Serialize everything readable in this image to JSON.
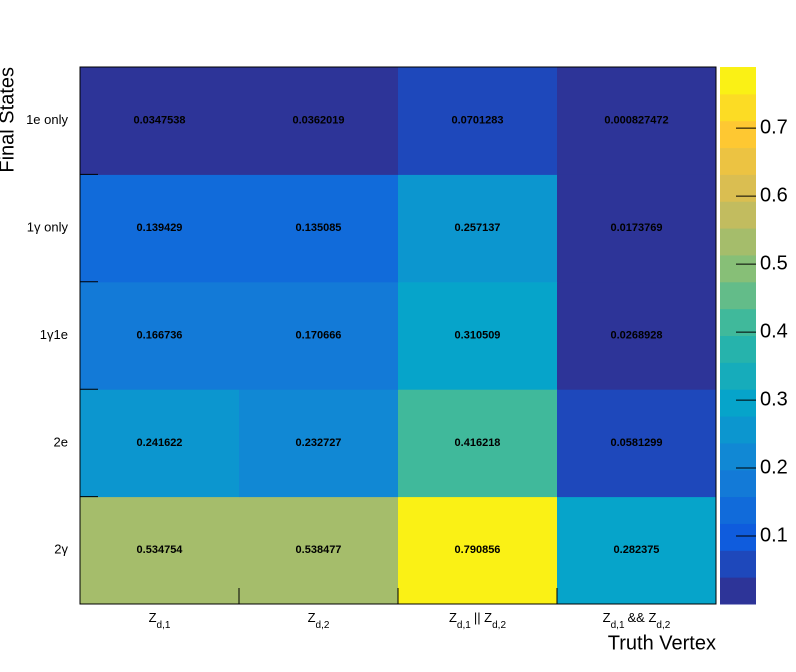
{
  "chart_data": {
    "type": "heatmap",
    "x_label": "Truth Vertex",
    "y_label": "Final States",
    "x_categories": [
      [
        {
          "text": "Z"
        },
        {
          "sub": "d,1"
        }
      ],
      [
        {
          "text": "Z"
        },
        {
          "sub": "d,2"
        }
      ],
      [
        {
          "text": "Z"
        },
        {
          "sub": "d,1"
        },
        {
          "text": "|| Z"
        },
        {
          "sub": "d,2"
        }
      ],
      [
        {
          "text": "Z"
        },
        {
          "sub": "d,1"
        },
        {
          "text": "&& Z"
        },
        {
          "sub": "d,2"
        }
      ]
    ],
    "y_categories": [
      "2γ",
      "2e",
      "1γ1e",
      "1γ only",
      "1e only"
    ],
    "values": [
      [
        0.534754,
        0.538477,
        0.790856,
        0.282375
      ],
      [
        0.241622,
        0.232727,
        0.416218,
        0.0581299
      ],
      [
        0.166736,
        0.170666,
        0.310509,
        0.0268928
      ],
      [
        0.139429,
        0.135085,
        0.257137,
        0.0173769
      ],
      [
        0.0347538,
        0.0362019,
        0.0701283,
        0.000827472
      ]
    ],
    "zlim": [
      0,
      0.79
    ],
    "zticks": [
      0.1,
      0.2,
      0.3,
      0.4,
      0.5,
      0.6,
      0.7
    ],
    "palette": [
      "#352a87",
      "#0f5cdd",
      "#1481d6",
      "#06a4ca",
      "#2eb7a4",
      "#87bf77",
      "#d1bb59",
      "#fec832",
      "#f9fb0e"
    ]
  }
}
